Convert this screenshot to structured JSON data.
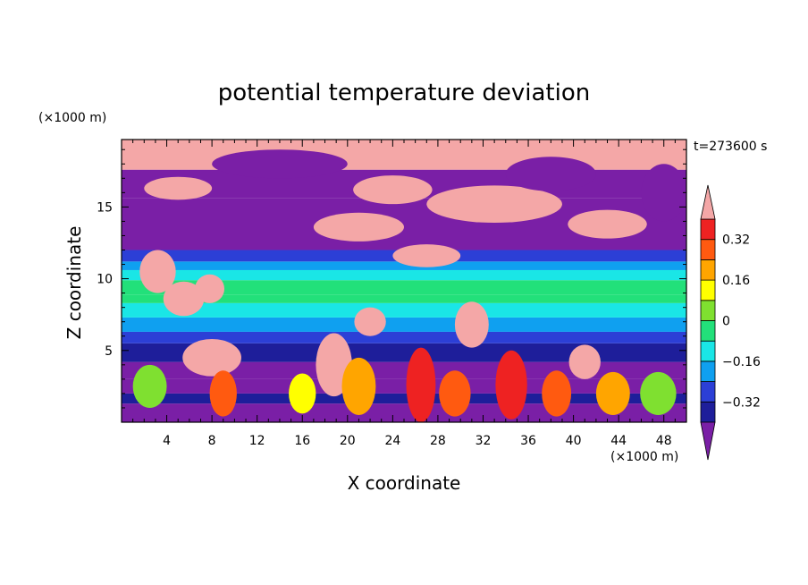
{
  "chart_data": {
    "type": "heatmap",
    "title": "potential temperature deviation",
    "xlabel": "X coordinate",
    "ylabel": "Z coordinate",
    "x_unit": "(×1000 m)",
    "y_unit": "(×1000 m)",
    "time_label": "t=273600 s",
    "xlim": [
      0,
      50
    ],
    "ylim": [
      0,
      19.7
    ],
    "x_ticks": [
      4,
      8,
      12,
      16,
      20,
      24,
      28,
      32,
      36,
      40,
      44,
      48
    ],
    "y_ticks": [
      5,
      10,
      15
    ],
    "x_minor_step": 1,
    "y_minor_step": 1,
    "colorbar": {
      "ticks": [
        "0.32",
        "0.16",
        "0",
        "−0.16",
        "−0.32"
      ],
      "tick_values": [
        0.32,
        0.16,
        0,
        -0.16,
        -0.32
      ],
      "levels": [
        -0.4,
        -0.32,
        -0.24,
        -0.16,
        -0.08,
        0,
        0.08,
        0.16,
        0.24,
        0.32,
        0.4
      ],
      "under_color": "#7a1fa6",
      "over_color": "#f4a7a7",
      "colors": [
        "#1e1e9a",
        "#2c3fd6",
        "#0fa0f0",
        "#1ae6e6",
        "#22e07a",
        "#7fe030",
        "#ffff00",
        "#ffa500",
        "#ff5a10",
        "#ee2222"
      ]
    },
    "field": {
      "bands": [
        {
          "z": [
            0,
            1.3
          ],
          "value": -0.5
        },
        {
          "z": [
            1.3,
            2.0
          ],
          "value": -0.34
        },
        {
          "z": [
            2.0,
            3.0
          ],
          "value": -0.5
        },
        {
          "z": [
            3.0,
            4.2
          ],
          "value": -0.46
        },
        {
          "z": [
            4.2,
            5.5
          ],
          "value": -0.34
        },
        {
          "z": [
            5.5,
            6.3
          ],
          "value": -0.28
        },
        {
          "z": [
            6.3,
            7.3
          ],
          "value": -0.2
        },
        {
          "z": [
            7.3,
            8.3
          ],
          "value": -0.12
        },
        {
          "z": [
            8.3,
            8.9
          ],
          "value": -0.04
        },
        {
          "z": [
            8.9,
            9.9
          ],
          "value": -0.06
        },
        {
          "z": [
            9.9,
            10.6
          ],
          "value": -0.12
        },
        {
          "z": [
            10.6,
            11.2
          ],
          "value": -0.2
        },
        {
          "z": [
            11.2,
            12.0
          ],
          "value": -0.3
        },
        {
          "z": [
            12.0,
            15.6
          ],
          "value": -0.5
        },
        {
          "z": [
            15.6,
            17.6
          ],
          "value": -0.5
        },
        {
          "z": [
            17.6,
            19.7
          ],
          "value": 0.5
        }
      ],
      "blobs": [
        {
          "cx": 3.2,
          "cz": 10.5,
          "rx": 1.6,
          "rz": 1.5,
          "value": 0.5
        },
        {
          "cx": 5.5,
          "cz": 8.6,
          "rx": 1.8,
          "rz": 1.2,
          "value": 0.5
        },
        {
          "cx": 7.8,
          "cz": 9.3,
          "rx": 1.3,
          "rz": 1.0,
          "value": 0.5
        },
        {
          "cx": 8.0,
          "cz": 4.5,
          "rx": 2.6,
          "rz": 1.3,
          "value": 0.5
        },
        {
          "cx": 18.8,
          "cz": 4.0,
          "rx": 1.6,
          "rz": 2.2,
          "value": 0.5
        },
        {
          "cx": 22.0,
          "cz": 7.0,
          "rx": 1.4,
          "rz": 1.0,
          "value": 0.5
        },
        {
          "cx": 31.0,
          "cz": 6.8,
          "rx": 1.5,
          "rz": 1.6,
          "value": 0.5
        },
        {
          "cx": 41.0,
          "cz": 4.2,
          "rx": 1.4,
          "rz": 1.2,
          "value": 0.5
        },
        {
          "cx": 21.0,
          "cz": 13.6,
          "rx": 4.0,
          "rz": 1.0,
          "value": 0.5
        },
        {
          "cx": 33.0,
          "cz": 15.2,
          "rx": 6.0,
          "rz": 1.3,
          "value": 0.5
        },
        {
          "cx": 43.0,
          "cz": 13.8,
          "rx": 3.5,
          "rz": 1.0,
          "value": 0.5
        },
        {
          "cx": 27.0,
          "cz": 11.6,
          "rx": 3.0,
          "rz": 0.8,
          "value": 0.5
        },
        {
          "cx": 5.0,
          "cz": 16.3,
          "rx": 3.0,
          "rz": 0.8,
          "value": 0.5
        },
        {
          "cx": 24.0,
          "cz": 16.2,
          "rx": 3.5,
          "rz": 1.0,
          "value": 0.5
        },
        {
          "cx": 14.0,
          "cz": 18.0,
          "rx": 6.0,
          "rz": 1.0,
          "value": -0.5
        },
        {
          "cx": 38.0,
          "cz": 17.3,
          "rx": 4.0,
          "rz": 1.2,
          "value": -0.5
        },
        {
          "cx": 48.0,
          "cz": 16.0,
          "rx": 2.0,
          "rz": 2.0,
          "value": -0.5
        },
        {
          "cx": 9.0,
          "cz": 2.0,
          "rx": 1.2,
          "rz": 1.6,
          "value": 0.3
        },
        {
          "cx": 16.0,
          "cz": 2.0,
          "rx": 1.2,
          "rz": 1.4,
          "value": 0.1
        },
        {
          "cx": 21.0,
          "cz": 2.5,
          "rx": 1.5,
          "rz": 2.0,
          "value": 0.18
        },
        {
          "cx": 26.5,
          "cz": 2.6,
          "rx": 1.3,
          "rz": 2.6,
          "value": 0.34
        },
        {
          "cx": 29.5,
          "cz": 2.0,
          "rx": 1.4,
          "rz": 1.6,
          "value": 0.28
        },
        {
          "cx": 34.5,
          "cz": 2.6,
          "rx": 1.4,
          "rz": 2.4,
          "value": 0.36
        },
        {
          "cx": 38.5,
          "cz": 2.0,
          "rx": 1.3,
          "rz": 1.6,
          "value": 0.3
        },
        {
          "cx": 43.5,
          "cz": 2.0,
          "rx": 1.5,
          "rz": 1.5,
          "value": 0.2
        },
        {
          "cx": 47.5,
          "cz": 2.0,
          "rx": 1.6,
          "rz": 1.5,
          "value": 0.06
        },
        {
          "cx": 2.5,
          "cz": 2.5,
          "rx": 1.5,
          "rz": 1.5,
          "value": 0.04
        }
      ]
    }
  }
}
